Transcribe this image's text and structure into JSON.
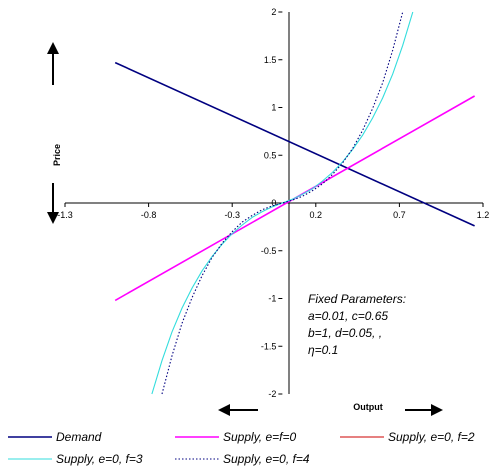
{
  "chart_data": {
    "type": "line",
    "xlabel": "Output",
    "ylabel": "Price",
    "xlim": [
      -1.3,
      1.2
    ],
    "ylim": [
      -2,
      2
    ],
    "x_ticks": [
      "-1.3",
      "-0.8",
      "-0.3",
      "0.2",
      "0.7",
      "1.2"
    ],
    "y_ticks": [
      "2",
      "1.5",
      "1",
      "0.5",
      "0",
      "-0.5",
      "-1",
      "-1.5",
      "-2"
    ],
    "grid": false,
    "legend_position": "bottom",
    "annotation": [
      "Fixed Parameters:",
      "a=0.01, c=0.65",
      "b=1, d=0.05, ,",
      "η=0.1"
    ],
    "series": [
      {
        "name": "Demand",
        "color": "#000080",
        "dash": "solid",
        "x": [
          -1.0,
          1.15
        ],
        "y": [
          1.47,
          -0.24
        ]
      },
      {
        "name": "Supply, e=f=0",
        "color": "#ff00ff",
        "dash": "solid",
        "x": [
          -1.0,
          1.15
        ],
        "y": [
          -1.02,
          1.12
        ]
      },
      {
        "name": "Supply, e=0, f=2",
        "color": "#cc0000",
        "dash": "solid",
        "x": [],
        "y": []
      },
      {
        "name": "Supply, e=0, f=3",
        "color": "#33dddd",
        "dash": "solid",
        "x": [
          -0.78,
          -0.72,
          -0.66,
          -0.6,
          -0.54,
          -0.48,
          -0.42,
          -0.36,
          -0.3,
          -0.24,
          -0.18,
          -0.12,
          -0.06,
          0,
          0.06,
          0.12,
          0.18,
          0.24,
          0.3,
          0.36,
          0.42,
          0.48,
          0.54,
          0.6,
          0.66,
          0.72,
          0.78
        ],
        "y": [
          -2.0,
          -1.65,
          -1.35,
          -1.1,
          -0.89,
          -0.71,
          -0.56,
          -0.43,
          -0.32,
          -0.23,
          -0.15,
          -0.09,
          -0.04,
          0,
          0.04,
          0.09,
          0.15,
          0.23,
          0.32,
          0.43,
          0.56,
          0.71,
          0.89,
          1.1,
          1.35,
          1.65,
          2.0
        ]
      },
      {
        "name": "Supply, e=0, f=4",
        "color": "#000080",
        "dash": "dotted",
        "x": [
          -0.72,
          -0.66,
          -0.6,
          -0.54,
          -0.48,
          -0.42,
          -0.36,
          -0.3,
          -0.24,
          -0.18,
          -0.12,
          -0.06,
          0,
          0.06,
          0.12,
          0.18,
          0.24,
          0.3,
          0.36,
          0.42,
          0.48,
          0.54,
          0.6,
          0.66,
          0.72
        ],
        "y": [
          -2.0,
          -1.6,
          -1.26,
          -0.99,
          -0.76,
          -0.57,
          -0.42,
          -0.3,
          -0.2,
          -0.13,
          -0.07,
          -0.03,
          0,
          0.03,
          0.07,
          0.13,
          0.2,
          0.3,
          0.42,
          0.57,
          0.76,
          0.99,
          1.26,
          1.6,
          2.0
        ]
      }
    ]
  }
}
